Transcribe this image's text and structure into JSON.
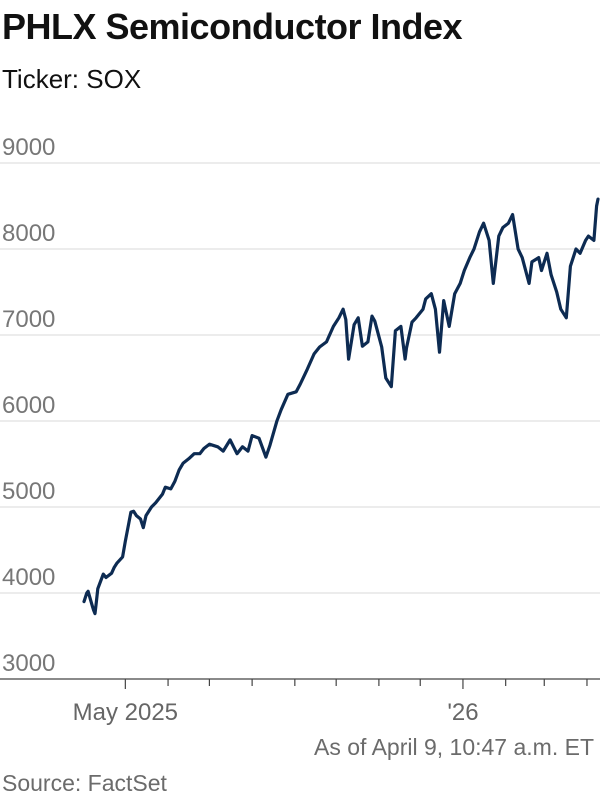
{
  "header": {
    "title": "PHLX Semiconductor Index",
    "subtitle": "Ticker: SOX"
  },
  "footer": {
    "as_of": "As of April 9, 10:47 a.m. ET",
    "source": "Source: FactSet"
  },
  "colors": {
    "line": "#0d2b52",
    "grid": "#d9d9d9",
    "axis": "#444444",
    "tick_text": "#777777"
  },
  "chart_data": {
    "type": "line",
    "title": "PHLX Semiconductor Index",
    "subtitle": "Ticker: SOX",
    "xlabel": "",
    "ylabel": "",
    "ylim": [
      3000,
      9000
    ],
    "xlim": [
      "2025-04-01",
      "2026-04-09"
    ],
    "y_ticks": [
      3000,
      4000,
      5000,
      6000,
      7000,
      8000,
      9000
    ],
    "x_tick_labels": [
      {
        "label": "May 2025",
        "x": "2025-05-01"
      },
      {
        "label": "'26",
        "x": "2026-01-01"
      }
    ],
    "x_minor_ticks": [
      "2025-05-01",
      "2025-06-01",
      "2025-07-01",
      "2025-08-01",
      "2025-09-01",
      "2025-10-01",
      "2025-11-01",
      "2025-12-01",
      "2026-01-01",
      "2026-02-01",
      "2026-03-01",
      "2026-04-01"
    ],
    "grid": true,
    "series": [
      {
        "x": [
          "2025-04-01",
          "2025-04-03",
          "2025-04-04",
          "2025-04-07",
          "2025-04-08",
          "2025-04-09",
          "2025-04-10",
          "2025-04-11",
          "2025-04-15",
          "2025-04-17",
          "2025-04-21",
          "2025-04-23",
          "2025-04-25",
          "2025-04-29",
          "2025-05-01",
          "2025-05-05",
          "2025-05-07",
          "2025-05-09",
          "2025-05-12",
          "2025-05-14",
          "2025-05-16",
          "2025-05-20",
          "2025-05-23",
          "2025-05-28",
          "2025-05-30",
          "2025-06-03",
          "2025-06-06",
          "2025-06-09",
          "2025-06-12",
          "2025-06-16",
          "2025-06-20",
          "2025-06-24",
          "2025-06-27",
          "2025-07-01",
          "2025-07-07",
          "2025-07-11",
          "2025-07-16",
          "2025-07-21",
          "2025-07-25",
          "2025-07-29",
          "2025-08-01",
          "2025-08-06",
          "2025-08-11",
          "2025-08-14",
          "2025-08-19",
          "2025-08-22",
          "2025-08-27",
          "2025-09-02",
          "2025-09-05",
          "2025-09-10",
          "2025-09-15",
          "2025-09-19",
          "2025-09-24",
          "2025-09-29",
          "2025-10-03",
          "2025-10-06",
          "2025-10-08",
          "2025-10-10",
          "2025-10-14",
          "2025-10-17",
          "2025-10-20",
          "2025-10-24",
          "2025-10-27",
          "2025-10-29",
          "2025-11-03",
          "2025-11-06",
          "2025-11-10",
          "2025-11-13",
          "2025-11-17",
          "2025-11-20",
          "2025-11-21",
          "2025-11-25",
          "2025-11-28",
          "2025-12-03",
          "2025-12-05",
          "2025-12-09",
          "2025-12-12",
          "2025-12-15",
          "2025-12-18",
          "2025-12-22",
          "2025-12-26",
          "2025-12-30",
          "2026-01-02",
          "2026-01-06",
          "2026-01-09",
          "2026-01-13",
          "2026-01-16",
          "2026-01-20",
          "2026-01-23",
          "2026-01-27",
          "2026-01-30",
          "2026-02-03",
          "2026-02-06",
          "2026-02-10",
          "2026-02-13",
          "2026-02-18",
          "2026-02-20",
          "2026-02-25",
          "2026-02-27",
          "2026-03-03",
          "2026-03-06",
          "2026-03-10",
          "2026-03-13",
          "2026-03-17",
          "2026-03-20",
          "2026-03-24",
          "2026-03-27",
          "2026-03-31",
          "2026-04-02",
          "2026-04-06",
          "2026-04-08",
          "2026-04-09"
        ],
        "values": [
          3900,
          4000,
          4020,
          3850,
          3800,
          3760,
          3900,
          4050,
          4220,
          4180,
          4230,
          4300,
          4350,
          4420,
          4600,
          4940,
          4950,
          4900,
          4860,
          4760,
          4900,
          5000,
          5050,
          5150,
          5230,
          5210,
          5300,
          5430,
          5510,
          5560,
          5620,
          5620,
          5680,
          5730,
          5700,
          5650,
          5780,
          5620,
          5700,
          5650,
          5830,
          5800,
          5580,
          5720,
          6000,
          6130,
          6310,
          6340,
          6430,
          6600,
          6780,
          6860,
          6920,
          7100,
          7200,
          7300,
          7180,
          6720,
          7120,
          7200,
          6870,
          6920,
          7220,
          7160,
          6860,
          6500,
          6400,
          7050,
          7100,
          6720,
          6850,
          7150,
          7200,
          7300,
          7420,
          7480,
          7300,
          6800,
          7400,
          7100,
          7480,
          7600,
          7750,
          7900,
          8000,
          8200,
          8300,
          8100,
          7600,
          8150,
          8250,
          8300,
          8400,
          8000,
          7900,
          7600,
          7850,
          7900,
          7750,
          7950,
          7700,
          7500,
          7300,
          7200,
          7800,
          8000,
          7950,
          8100,
          8150,
          8100,
          8500,
          8580
        ]
      }
    ]
  }
}
